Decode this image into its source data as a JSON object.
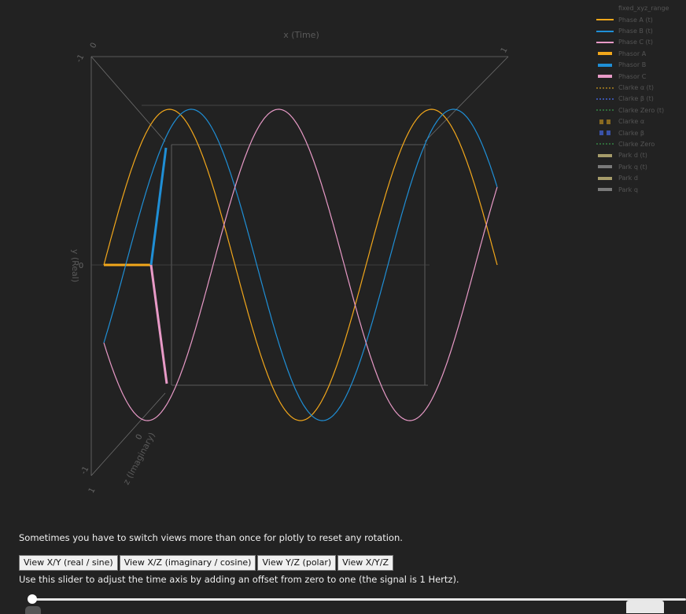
{
  "axes": {
    "x_title": "x (Time)",
    "y_title": "y (Real)",
    "z_title": "z (Imaginary)",
    "tick_top": "0",
    "tick_neg_top": "-1",
    "tick_one_top": "1",
    "tick_y_zero": "0",
    "tick_z_zero": "0",
    "tick_z_neg": "-1",
    "tick_z_one": "1"
  },
  "chart_data": {
    "type": "line",
    "title": "",
    "xlabel": "x (Time)",
    "ylabel": "y (Real)",
    "zlabel": "z (Imaginary)",
    "ylim": [
      -1,
      1
    ],
    "frequency_hz": 1,
    "series": [
      {
        "name": "Phase A (t)",
        "color": "#f2a71b",
        "function": "sin(2πt)",
        "phase_deg": 90
      },
      {
        "name": "Phase B (t)",
        "color": "#1f8fd6",
        "function": "sin(2πt - 120°)",
        "phase_deg": -30
      },
      {
        "name": "Phase C (t)",
        "color": "#e89ac7",
        "function": "sin(2πt + 120°)",
        "phase_deg": 210
      }
    ]
  },
  "legend": {
    "title": "fixed_xyz_range",
    "items": [
      {
        "label": "Phase A (t)",
        "style": "line",
        "color": "#f2a71b"
      },
      {
        "label": "Phase B (t)",
        "style": "line",
        "color": "#1f8fd6"
      },
      {
        "label": "Phase C (t)",
        "style": "line",
        "color": "#e89ac7"
      },
      {
        "label": "Phasor A",
        "style": "thick",
        "color": "#f2a71b"
      },
      {
        "label": "Phasor B",
        "style": "thick",
        "color": "#1f8fd6"
      },
      {
        "label": "Phasor C",
        "style": "thick",
        "color": "#e89ac7"
      },
      {
        "label": "Clarke α (t)",
        "style": "dot",
        "color": "#8a6a20"
      },
      {
        "label": "Clarke β (t)",
        "style": "dot",
        "color": "#3a52a8"
      },
      {
        "label": "Clarke Zero (t)",
        "style": "dot",
        "color": "#2f6a3a"
      },
      {
        "label": "Clarke α",
        "style": "squares",
        "color": "#8a6a20"
      },
      {
        "label": "Clarke β",
        "style": "squares",
        "color": "#3a52a8"
      },
      {
        "label": "Clarke Zero",
        "style": "dot",
        "color": "#2f6a3a"
      },
      {
        "label": "Park d (t)",
        "style": "thick",
        "color": "#a69c6a"
      },
      {
        "label": "Park q (t)",
        "style": "thick",
        "color": "#7a7a7a"
      },
      {
        "label": "Park d",
        "style": "thick",
        "color": "#a69c6a"
      },
      {
        "label": "Park q",
        "style": "thick",
        "color": "#7a7a7a"
      }
    ]
  },
  "note": "Sometimes you have to switch views more than once for plotly to reset any rotation.",
  "buttons": [
    {
      "label": "View X/Y (real / sine)"
    },
    {
      "label": "View X/Z (imaginary / cosine)"
    },
    {
      "label": "View Y/Z (polar)"
    },
    {
      "label": "View X/Y/Z"
    }
  ],
  "slider": {
    "label": "Use this slider to adjust the time axis by adding an offset from zero to one (the signal is 1 Hertz).",
    "value": 0
  }
}
